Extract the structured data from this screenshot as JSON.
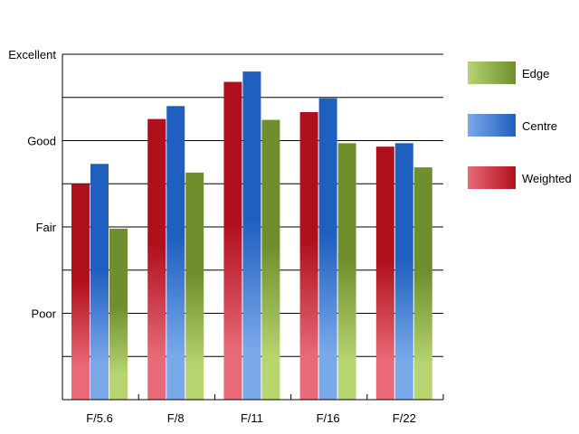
{
  "chart_data": {
    "type": "bar",
    "title": "",
    "xlabel": "",
    "ylabel": "",
    "categories": [
      "F/5.6",
      "F/8",
      "F/11",
      "F/16",
      "F/22"
    ],
    "y_tick_labels": [
      "Poor",
      "Fair",
      "Good",
      "Excellent"
    ],
    "y_tick_values": [
      1,
      2,
      3,
      4
    ],
    "ylim": [
      0,
      4
    ],
    "grid": true,
    "legend_position": "right",
    "series": [
      {
        "name": "Weighted",
        "values": [
          2.5,
          3.25,
          3.68,
          3.33,
          2.93
        ],
        "color_dark": "#b0101c",
        "color_light": "#e86a78"
      },
      {
        "name": "Centre",
        "values": [
          2.73,
          3.4,
          3.8,
          3.49,
          2.97
        ],
        "color_dark": "#1f5fbf",
        "color_light": "#7aa9ea"
      },
      {
        "name": "Edge",
        "values": [
          1.98,
          2.63,
          3.24,
          2.97,
          2.69
        ],
        "color_dark": "#6f8f2e",
        "color_light": "#b6d470"
      }
    ],
    "legend_order": [
      "Edge",
      "Centre",
      "Weighted"
    ]
  }
}
